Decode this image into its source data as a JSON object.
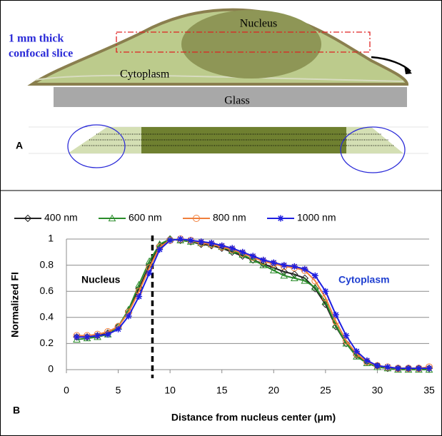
{
  "diagram": {
    "panel_label": "A",
    "nucleus": "Nucleus",
    "slice_line1": "1 mm thick",
    "slice_line2": "confocal slice",
    "cytoplasm": "Cytoplasm",
    "glass": "Glass"
  },
  "chart_data": {
    "type": "line",
    "panel_label": "B",
    "xlabel": "Distance from nucleus center (μm)",
    "ylabel": "Normalized FI",
    "annotations": [
      {
        "text": "Nucleus",
        "color": "#000000"
      },
      {
        "text": "Cytoplasm",
        "color": "#1f3fd0"
      }
    ],
    "nucleus_boundary": 8.3,
    "xlim": [
      0,
      35
    ],
    "xticks": [
      0,
      5,
      10,
      15,
      20,
      25,
      30,
      35
    ],
    "ylim": [
      0,
      1
    ],
    "yticks": [
      0,
      0.2,
      0.4,
      0.6,
      0.8,
      1
    ],
    "grid": true,
    "x": [
      1,
      2,
      3,
      4,
      5,
      6,
      7,
      8,
      9,
      10,
      11,
      12,
      13,
      14,
      15,
      16,
      17,
      18,
      19,
      20,
      21,
      22,
      23,
      24,
      25,
      26,
      27,
      28,
      29,
      30,
      31,
      32,
      33,
      34,
      35
    ],
    "series": [
      {
        "name": "400 nm",
        "color": "#222222",
        "marker": "diamond",
        "values": [
          0.25,
          0.25,
          0.26,
          0.28,
          0.33,
          0.45,
          0.62,
          0.8,
          0.95,
          1.0,
          0.99,
          0.98,
          0.96,
          0.95,
          0.93,
          0.9,
          0.87,
          0.84,
          0.81,
          0.78,
          0.75,
          0.73,
          0.7,
          0.62,
          0.5,
          0.33,
          0.2,
          0.11,
          0.06,
          0.03,
          0.01,
          0.01,
          0.01,
          0.01,
          0.01
        ]
      },
      {
        "name": "600 nm",
        "color": "#2a8c2a",
        "marker": "triangle",
        "values": [
          0.23,
          0.24,
          0.25,
          0.27,
          0.33,
          0.46,
          0.65,
          0.83,
          0.96,
          1.0,
          0.99,
          0.98,
          0.97,
          0.96,
          0.94,
          0.91,
          0.88,
          0.84,
          0.8,
          0.76,
          0.72,
          0.7,
          0.68,
          0.63,
          0.52,
          0.34,
          0.2,
          0.1,
          0.05,
          0.02,
          0.01,
          0.0,
          0.0,
          0.0,
          0.0
        ]
      },
      {
        "name": "800 nm",
        "color": "#f07f3c",
        "marker": "circle",
        "values": [
          0.26,
          0.26,
          0.27,
          0.29,
          0.33,
          0.44,
          0.6,
          0.78,
          0.94,
          0.99,
          1.0,
          0.99,
          0.97,
          0.96,
          0.94,
          0.92,
          0.89,
          0.86,
          0.83,
          0.81,
          0.79,
          0.78,
          0.76,
          0.68,
          0.55,
          0.37,
          0.22,
          0.12,
          0.06,
          0.03,
          0.02,
          0.01,
          0.01,
          0.01,
          0.02
        ]
      },
      {
        "name": "1000 nm",
        "color": "#1f1fe0",
        "marker": "star",
        "values": [
          0.25,
          0.25,
          0.26,
          0.27,
          0.31,
          0.41,
          0.56,
          0.74,
          0.92,
          0.99,
          1.0,
          0.99,
          0.98,
          0.97,
          0.95,
          0.93,
          0.9,
          0.87,
          0.84,
          0.82,
          0.8,
          0.79,
          0.77,
          0.72,
          0.6,
          0.42,
          0.26,
          0.14,
          0.07,
          0.03,
          0.02,
          0.01,
          0.01,
          0.01,
          0.01
        ]
      }
    ]
  }
}
